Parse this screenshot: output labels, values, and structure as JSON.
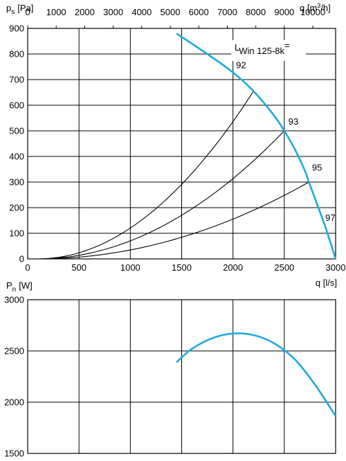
{
  "colors": {
    "fan_curve": "#1fa9e1",
    "lines": "#000000",
    "background": "#ffffff"
  },
  "chart_data": [
    {
      "type": "line",
      "title": "",
      "ylabel_main": "p",
      "ylabel_sub": "s",
      "ylabel_unit": "[Pa]",
      "xlabel": "q [l/s]",
      "top_axis_label_main": "q [m",
      "top_axis_label_sup": "3",
      "top_axis_label_end": "/h]",
      "xlim": [
        0,
        3000
      ],
      "ylim": [
        0,
        900
      ],
      "x_ticks": [
        "0",
        "500",
        "1000",
        "1500",
        "2000",
        "2500",
        "3000"
      ],
      "y_ticks": [
        "0",
        "100",
        "200",
        "300",
        "400",
        "500",
        "600",
        "700",
        "800",
        "900"
      ],
      "top_ticks": [
        "0",
        "1000",
        "2000",
        "3000",
        "4000",
        "5000",
        "6000",
        "7000",
        "8000",
        "9000",
        "10000"
      ],
      "grid": true,
      "annotation_main": "L",
      "annotation_sub": "Win 125-8k",
      "annotation_end": "=",
      "fan_curve": {
        "x": [
          1450,
          1750,
          2000,
          2200,
          2400,
          2500,
          2600,
          2700,
          2740,
          2800,
          2900,
          3000
        ],
        "y": [
          880,
          800,
          728,
          655,
          560,
          500,
          430,
          345,
          300,
          235,
          125,
          0
        ]
      },
      "system_curves": [
        {
          "label": "92",
          "label_x": 2030,
          "label_y": 755,
          "x_end": 2200,
          "y_end": 655
        },
        {
          "label": "93",
          "label_x": 2540,
          "label_y": 535,
          "x_end": 2500,
          "y_end": 500
        },
        {
          "label": "95",
          "label_x": 2770,
          "label_y": 355,
          "x_end": 2740,
          "y_end": 300
        },
        {
          "label": "97",
          "label_x": 2900,
          "label_y": 160,
          "x_end": null,
          "y_end": null
        }
      ],
      "system_curve_origin": [
        100,
        0
      ]
    },
    {
      "type": "line",
      "title": "",
      "ylabel_main": "P",
      "ylabel_sub": "n",
      "ylabel_unit": "[W]",
      "xlim": [
        0,
        3000
      ],
      "ylim": [
        1500,
        3000
      ],
      "y_ticks": [
        "1500",
        "2000",
        "2500",
        "3000"
      ],
      "grid": true,
      "power_curve": {
        "x": [
          1450,
          1600,
          1800,
          2000,
          2200,
          2400,
          2600,
          2800,
          3000
        ],
        "y": [
          2390,
          2520,
          2625,
          2670,
          2655,
          2575,
          2420,
          2170,
          1865
        ]
      }
    }
  ]
}
